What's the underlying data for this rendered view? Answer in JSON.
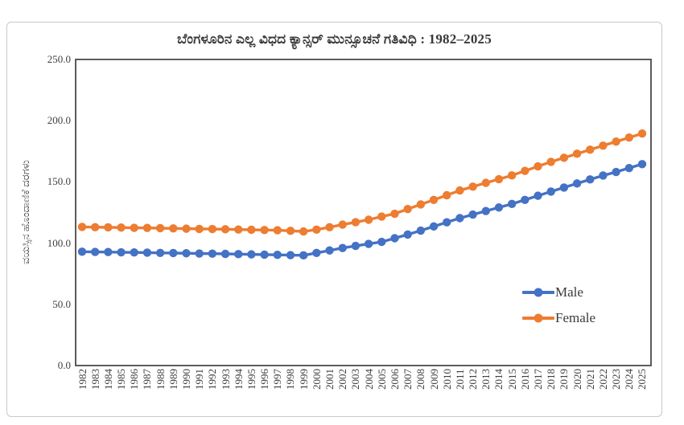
{
  "chart_data": {
    "type": "line",
    "title": "ಬೆಂಗಳೂರಿನ ಎಲ್ಲ ವಿಧದ ಕ್ಯಾನ್ಸರ್ ಮುನ್ಸೂಚನೆ ಗತಿವಿಧಿ : 1982–2025",
    "xlabel": "",
    "ylabel": "ವಯಸ್ಸಿನ ಹೊಂದಾಣಿಕೆ ದರಗಳು",
    "x": [
      1982,
      1983,
      1984,
      1985,
      1986,
      1987,
      1988,
      1989,
      1990,
      1991,
      1992,
      1993,
      1994,
      1995,
      1996,
      1997,
      1998,
      1999,
      2000,
      2001,
      2002,
      2003,
      2004,
      2005,
      2006,
      2007,
      2008,
      2009,
      2010,
      2011,
      2012,
      2013,
      2014,
      2015,
      2016,
      2017,
      2018,
      2019,
      2020,
      2021,
      2022,
      2023,
      2024,
      2025
    ],
    "series": [
      {
        "name": "Male",
        "color": "#4472C4",
        "values": [
          93.0,
          92.8,
          92.7,
          92.5,
          92.4,
          92.2,
          92.0,
          91.9,
          91.7,
          91.5,
          91.4,
          91.2,
          91.0,
          90.8,
          90.6,
          90.4,
          90.2,
          90.0,
          92.0,
          94.0,
          96.0,
          97.7,
          99.4,
          101.0,
          104.0,
          107.0,
          110.2,
          113.6,
          117.0,
          120.4,
          123.3,
          126.2,
          129.1,
          132.0,
          135.3,
          138.7,
          142.1,
          145.4,
          148.7,
          152.0,
          155.2,
          158.1,
          161.3,
          164.5
        ]
      },
      {
        "name": "Female",
        "color": "#ED7D31",
        "values": [
          113.2,
          113.0,
          112.9,
          112.7,
          112.5,
          112.4,
          112.2,
          112.0,
          111.8,
          111.6,
          111.5,
          111.3,
          111.1,
          110.9,
          110.7,
          110.5,
          110.0,
          109.5,
          111.0,
          113.0,
          115.1,
          117.1,
          119.1,
          121.7,
          124.0,
          127.8,
          131.6,
          135.3,
          139.1,
          143.0,
          146.1,
          149.2,
          152.2,
          155.3,
          159.0,
          162.7,
          166.4,
          169.7,
          173.0,
          176.3,
          179.6,
          182.9,
          186.2,
          189.5
        ]
      }
    ],
    "ylim": [
      0,
      250
    ],
    "yticks": [
      0,
      50,
      100,
      150,
      200,
      250
    ],
    "ytick_labels": [
      "0.0",
      "50.0",
      "100.0",
      "150.0",
      "200.0",
      "250.0"
    ],
    "grid": false,
    "legend_position": "inside-right",
    "marker": "circle",
    "frame_color": "#4a4a4a",
    "text_color": "#3f3f3f",
    "border_color": "#c9c9c9"
  }
}
